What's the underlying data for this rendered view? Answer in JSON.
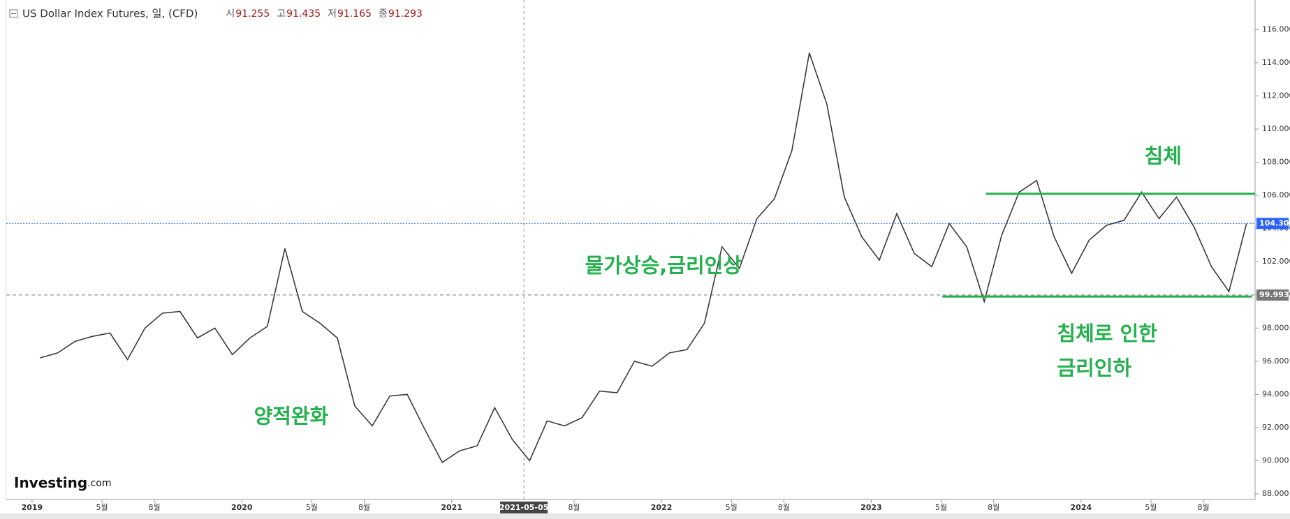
{
  "chart_data": {
    "type": "line",
    "title": "US Dollar Index Futures, 일, (CFD)",
    "ohlc": [
      {
        "label": "시",
        "value": 91.255
      },
      {
        "label": "고",
        "value": 91.435
      },
      {
        "label": "저",
        "value": 91.165
      },
      {
        "label": "종",
        "value": 91.293
      }
    ],
    "brand": "Investing",
    "brand_suffix": ".com",
    "x": [
      "2019-01",
      "2019-02",
      "2019-03",
      "2019-04",
      "2019-05",
      "2019-06",
      "2019-07",
      "2019-08",
      "2019-09",
      "2019-10",
      "2019-11",
      "2019-12",
      "2020-01",
      "2020-02",
      "2020-03",
      "2020-04",
      "2020-05",
      "2020-06",
      "2020-07",
      "2020-08",
      "2020-09",
      "2020-10",
      "2020-11",
      "2020-12",
      "2021-01",
      "2021-02",
      "2021-03",
      "2021-04",
      "2021-05",
      "2021-06",
      "2021-07",
      "2021-08",
      "2021-09",
      "2021-10",
      "2021-11",
      "2021-12",
      "2022-01",
      "2022-02",
      "2022-03",
      "2022-04",
      "2022-05",
      "2022-06",
      "2022-07",
      "2022-08",
      "2022-09",
      "2022-10",
      "2022-11",
      "2022-12",
      "2023-01",
      "2023-02",
      "2023-03",
      "2023-04",
      "2023-05",
      "2023-06",
      "2023-07",
      "2023-08",
      "2023-09",
      "2023-10",
      "2023-11",
      "2023-12",
      "2024-01",
      "2024-02",
      "2024-03",
      "2024-04",
      "2024-05",
      "2024-06",
      "2024-07",
      "2024-08",
      "2024-09",
      "2024-10"
    ],
    "series": [
      {
        "name": "US Dollar Index Futures",
        "color": "#3a3a3a",
        "values": [
          96.2,
          96.5,
          97.2,
          97.5,
          97.7,
          96.1,
          98.0,
          98.9,
          99.0,
          97.4,
          98.0,
          96.4,
          97.4,
          98.1,
          102.8,
          99.0,
          98.3,
          97.4,
          93.3,
          92.1,
          93.9,
          94.0,
          91.9,
          89.9,
          90.6,
          90.9,
          93.2,
          91.3,
          90.0,
          92.4,
          92.1,
          92.6,
          94.2,
          94.1,
          96.0,
          95.7,
          96.5,
          96.7,
          98.3,
          102.9,
          101.6,
          104.6,
          105.8,
          108.7,
          114.6,
          111.5,
          105.9,
          103.5,
          102.1,
          104.9,
          102.5,
          101.7,
          104.3,
          102.9,
          99.6,
          103.6,
          106.2,
          106.9,
          103.5,
          101.3,
          103.3,
          104.2,
          104.5,
          106.2,
          104.6,
          105.9,
          104.1,
          101.7,
          100.2,
          104.3
        ]
      }
    ],
    "xlim": [
      "2018-11-17",
      "2024-10-30"
    ],
    "xticks": [
      {
        "value": "2019-01",
        "label": "2019"
      },
      {
        "value": "2019-05",
        "label": "5월"
      },
      {
        "value": "2019-08",
        "label": "8월"
      },
      {
        "value": "2020-01",
        "label": "2020"
      },
      {
        "value": "2020-05",
        "label": "5월"
      },
      {
        "value": "2020-08",
        "label": "8월"
      },
      {
        "value": "2021-01",
        "label": "2021"
      },
      {
        "value": "2021-08",
        "label": "8월"
      },
      {
        "value": "2022-01",
        "label": "2022"
      },
      {
        "value": "2022-05",
        "label": "5월"
      },
      {
        "value": "2022-08",
        "label": "8월"
      },
      {
        "value": "2023-01",
        "label": "2023"
      },
      {
        "value": "2023-05",
        "label": "5월"
      },
      {
        "value": "2023-08",
        "label": "8월"
      },
      {
        "value": "2024-01",
        "label": "2024"
      },
      {
        "value": "2024-05",
        "label": "5월"
      },
      {
        "value": "2024-08",
        "label": "8월"
      }
    ],
    "crosshair": "2021-05-05",
    "ylim": [
      87.3,
      117.7
    ],
    "yticks": [
      {
        "value": 88,
        "label": "88.000"
      },
      {
        "value": 90,
        "label": "90.000"
      },
      {
        "value": 92,
        "label": "92.000"
      },
      {
        "value": 94,
        "label": "94.000"
      },
      {
        "value": 96,
        "label": "96.000"
      },
      {
        "value": 98,
        "label": "98.000"
      },
      {
        "value": 100,
        "label": "100.000"
      },
      {
        "value": 102,
        "label": "102.000"
      },
      {
        "value": 104,
        "label": "104.000"
      },
      {
        "value": 106,
        "label": "106.000"
      },
      {
        "value": 108,
        "label": "108.000"
      },
      {
        "value": 110,
        "label": "110.000"
      },
      {
        "value": 112,
        "label": "112.000"
      },
      {
        "value": 114,
        "label": "114.000"
      },
      {
        "value": 116,
        "label": "116.000"
      }
    ],
    "price_lines": [
      {
        "value": 104.309,
        "color": "#2962ff"
      },
      {
        "value": 99.993,
        "color": "#777777"
      }
    ],
    "trend_lines": [
      {
        "value": 106.1,
        "x": [
          "2023-07-18",
          "2024-10-30"
        ],
        "color": "#22b14c"
      },
      {
        "value": 99.9,
        "x": [
          "2023-05-03",
          "2024-10-25"
        ],
        "color": "#22b14c"
      }
    ],
    "annotations": [
      {
        "text": "침체",
        "x": "2024-04-20",
        "y": 108.3
      },
      {
        "text": "물가상승,금리인상",
        "x": "2021-08-20",
        "y": 101.7
      },
      {
        "text": "양적완화",
        "x": "2020-01-22",
        "y": 92.6
      },
      {
        "text": "침체로 인한",
        "x": "2023-11-20",
        "y": 97.6
      },
      {
        "text": "금리인하",
        "x": "2023-11-20",
        "y": 95.5
      }
    ]
  }
}
